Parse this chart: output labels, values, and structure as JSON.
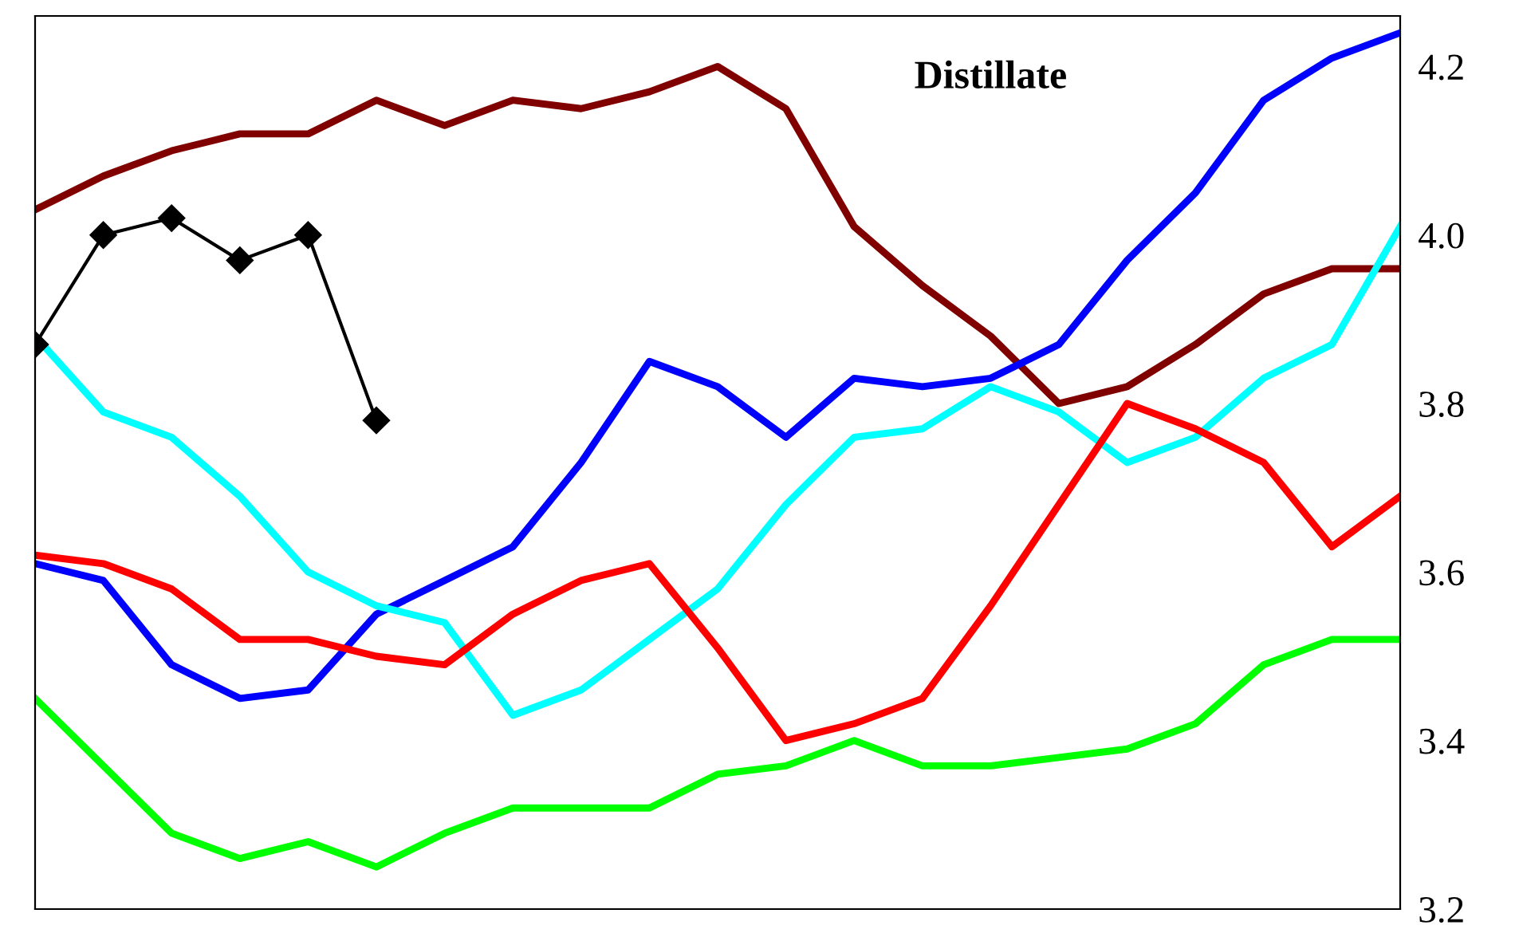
{
  "chart_data": {
    "type": "line",
    "title": "Distillate",
    "categories": [
      null,
      null,
      null,
      null,
      null,
      null,
      null,
      null,
      null,
      null,
      null,
      null,
      null,
      null,
      null,
      null,
      null,
      null,
      null,
      null,
      null
    ],
    "series": [
      {
        "color": "#800000",
        "values": [
          4.03,
          4.07,
          4.1,
          4.12,
          4.12,
          4.16,
          4.13,
          4.16,
          4.15,
          4.17,
          4.2,
          4.15,
          4.01,
          3.94,
          3.88,
          3.8,
          3.82,
          3.87,
          3.93,
          3.96,
          3.96
        ]
      },
      {
        "color": "#0000ff",
        "values": [
          3.61,
          3.59,
          3.49,
          3.45,
          3.46,
          3.55,
          3.59,
          3.63,
          3.73,
          3.85,
          3.82,
          3.76,
          3.83,
          3.82,
          3.83,
          3.87,
          3.97,
          4.05,
          4.16,
          4.21,
          4.24
        ]
      },
      {
        "color": "#00ffff",
        "values": [
          3.88,
          3.79,
          3.76,
          3.69,
          3.6,
          3.56,
          3.54,
          3.43,
          3.46,
          3.52,
          3.58,
          3.68,
          3.76,
          3.77,
          3.82,
          3.79,
          3.73,
          3.76,
          3.83,
          3.87,
          4.01
        ]
      },
      {
        "color": "#ff0000",
        "values": [
          3.62,
          3.61,
          3.58,
          3.52,
          3.52,
          3.5,
          3.49,
          3.55,
          3.59,
          3.61,
          3.51,
          3.4,
          3.42,
          3.45,
          3.56,
          3.68,
          3.8,
          3.77,
          3.73,
          3.63,
          3.69
        ]
      },
      {
        "color": "#00ff00",
        "values": [
          3.45,
          3.37,
          3.29,
          3.26,
          3.28,
          3.25,
          3.29,
          3.32,
          3.32,
          3.32,
          3.36,
          3.37,
          3.4,
          3.37,
          3.37,
          3.38,
          3.39,
          3.42,
          3.49,
          3.52,
          3.52
        ]
      },
      {
        "color": "#000000",
        "marker": "diamond",
        "values": [
          3.87,
          4.0,
          4.02,
          3.97,
          4.0,
          3.78,
          null,
          null,
          null,
          null,
          null,
          null,
          null,
          null,
          null,
          null,
          null,
          null,
          null,
          null,
          null
        ]
      }
    ],
    "ylim": [
      3.2,
      4.26
    ],
    "yticks": [
      3.2,
      3.4,
      3.6,
      3.8,
      {
        "value": 4.0,
        "label": "4.0"
      },
      4.2
    ],
    "tick_labels": "y",
    "grid": false,
    "legend": false
  }
}
